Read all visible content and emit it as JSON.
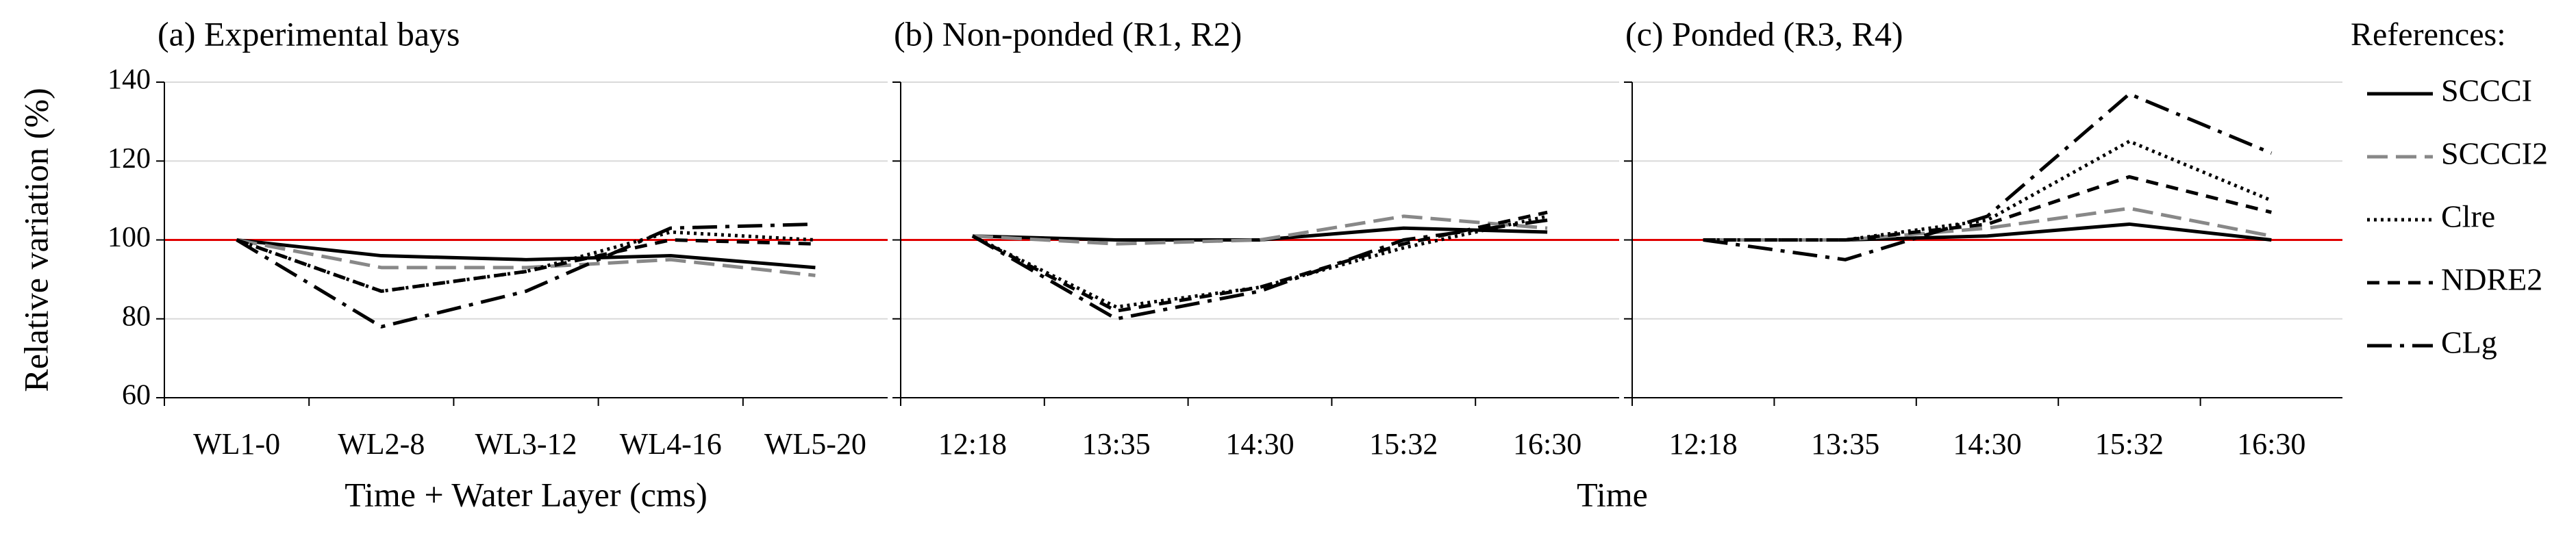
{
  "legend_title": "References:",
  "chart_data": [
    {
      "type": "line",
      "title": "(a) Experimental bays",
      "ylabel": "Relative variation (%)",
      "xlabel": "Time + Water Layer (cms)",
      "categories": [
        "WL1-0",
        "WL2-8",
        "WL3-12",
        "WL4-16",
        "WL5-20"
      ],
      "ylim": [
        60,
        140
      ],
      "yticks": [
        60,
        80,
        100,
        120,
        140
      ],
      "ytick_labels": true,
      "grid": true,
      "reference_line": 100,
      "reference_color": "#e00000",
      "series": [
        {
          "name": "SCCCI",
          "color": "#000000",
          "dash": "none",
          "values": [
            100,
            96,
            95,
            96,
            93
          ]
        },
        {
          "name": "SCCCI2",
          "color": "#888888",
          "dash": "30 12",
          "values": [
            100,
            93,
            93,
            95,
            91
          ]
        },
        {
          "name": "Clre",
          "color": "#000000",
          "dash": "4 6",
          "values": [
            100,
            87,
            92,
            102,
            100
          ]
        },
        {
          "name": "NDRE2",
          "color": "#000000",
          "dash": "18 12",
          "values": [
            100,
            87,
            92,
            100,
            99
          ]
        },
        {
          "name": "CLg",
          "color": "#000000",
          "dash": "36 12 6 12",
          "values": [
            100,
            78,
            87,
            103,
            104
          ]
        }
      ]
    },
    {
      "type": "line",
      "title": "(b) Non-ponded (R1, R2)",
      "xlabel": "Time",
      "categories": [
        "12:18",
        "13:35",
        "14:30",
        "15:32",
        "16:30"
      ],
      "ylim": [
        60,
        140
      ],
      "yticks": [
        60,
        80,
        100,
        120,
        140
      ],
      "grid": true,
      "reference_line": 100,
      "reference_color": "#e00000",
      "series": [
        {
          "color": "#000000",
          "dash": "none",
          "values": [
            101,
            100,
            100,
            103,
            102
          ]
        },
        {
          "color": "#888888",
          "dash": "30 12",
          "values": [
            101,
            99,
            100,
            106,
            103
          ]
        },
        {
          "color": "#000000",
          "dash": "4 6",
          "values": [
            101,
            83,
            88,
            98,
            106
          ]
        },
        {
          "color": "#000000",
          "dash": "18 12",
          "values": [
            101,
            82,
            88,
            99,
            107
          ]
        },
        {
          "color": "#000000",
          "dash": "36 12 6 12",
          "values": [
            101,
            80,
            87,
            100,
            105
          ]
        }
      ]
    },
    {
      "type": "line",
      "title": "(c) Ponded (R3, R4)",
      "categories": [
        "12:18",
        "13:35",
        "14:30",
        "15:32",
        "16:30"
      ],
      "ylim": [
        60,
        140
      ],
      "yticks": [
        60,
        80,
        100,
        120,
        140
      ],
      "grid": true,
      "reference_line": 100,
      "reference_color": "#e00000",
      "series": [
        {
          "color": "#000000",
          "dash": "none",
          "values": [
            100,
            100,
            101,
            104,
            100
          ]
        },
        {
          "color": "#888888",
          "dash": "30 12",
          "values": [
            100,
            100,
            103,
            108,
            101
          ]
        },
        {
          "color": "#000000",
          "dash": "4 6",
          "values": [
            100,
            100,
            105,
            125,
            110
          ]
        },
        {
          "color": "#000000",
          "dash": "18 12",
          "values": [
            100,
            100,
            104,
            116,
            107
          ]
        },
        {
          "color": "#000000",
          "dash": "36 12 6 12",
          "values": [
            100,
            95,
            106,
            137,
            122
          ]
        }
      ]
    }
  ]
}
